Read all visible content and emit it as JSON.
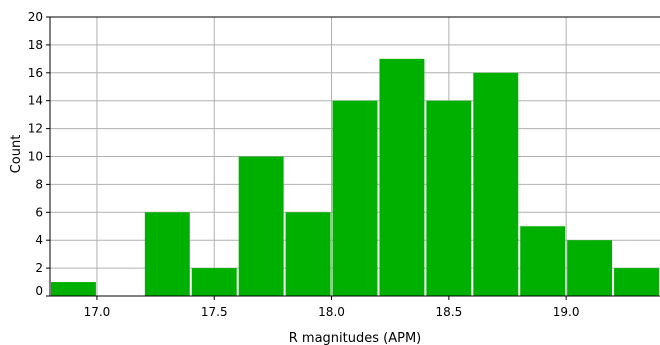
{
  "chart_data": {
    "type": "bar",
    "xlabel": "R magnitudes (APM)",
    "ylabel": "Count",
    "xlim": [
      16.8,
      19.4
    ],
    "ylim": [
      0,
      20
    ],
    "grid": true,
    "bin_width": 0.2,
    "bins": [
      {
        "start": 16.8,
        "end": 17.0,
        "count": 1
      },
      {
        "start": 17.0,
        "end": 17.2,
        "count": 0
      },
      {
        "start": 17.2,
        "end": 17.4,
        "count": 6
      },
      {
        "start": 17.4,
        "end": 17.6,
        "count": 2
      },
      {
        "start": 17.6,
        "end": 17.8,
        "count": 10
      },
      {
        "start": 17.8,
        "end": 18.0,
        "count": 6
      },
      {
        "start": 18.0,
        "end": 18.2,
        "count": 14
      },
      {
        "start": 18.2,
        "end": 18.4,
        "count": 17
      },
      {
        "start": 18.4,
        "end": 18.6,
        "count": 14
      },
      {
        "start": 18.6,
        "end": 18.8,
        "count": 16
      },
      {
        "start": 18.8,
        "end": 19.0,
        "count": 5
      },
      {
        "start": 19.0,
        "end": 19.2,
        "count": 4
      },
      {
        "start": 19.2,
        "end": 19.4,
        "count": 2
      }
    ],
    "x_ticks": [
      {
        "value": 17.0,
        "label": "17.0"
      },
      {
        "value": 17.5,
        "label": "17.5"
      },
      {
        "value": 18.0,
        "label": "18.0"
      },
      {
        "value": 18.5,
        "label": "18.5"
      },
      {
        "value": 19.0,
        "label": "19.0"
      }
    ],
    "y_ticks": [
      {
        "value": 0,
        "label": "0"
      },
      {
        "value": 2,
        "label": "2"
      },
      {
        "value": 4,
        "label": "4"
      },
      {
        "value": 6,
        "label": "6"
      },
      {
        "value": 8,
        "label": "8"
      },
      {
        "value": 10,
        "label": "10"
      },
      {
        "value": 12,
        "label": "12"
      },
      {
        "value": 14,
        "label": "14"
      },
      {
        "value": 16,
        "label": "16"
      },
      {
        "value": 18,
        "label": "18"
      },
      {
        "value": 20,
        "label": "20"
      }
    ],
    "colors": {
      "bar": "#00b000",
      "bar_edge": "#ffffff",
      "grid": "#b0b0b0",
      "axis": "#000000"
    }
  }
}
